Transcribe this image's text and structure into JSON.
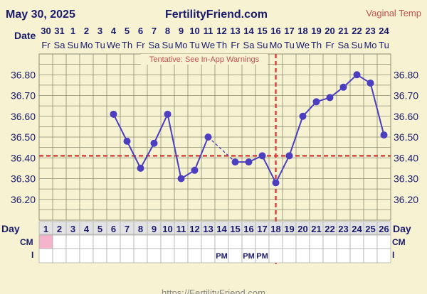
{
  "header": {
    "date": "May 30, 2025",
    "site": "FertilityFriend.com",
    "chart_label": "Vaginal Temp",
    "footer_url": "https://FertilityFriend.com"
  },
  "labels": {
    "date_row": "Date",
    "day_row": "Day",
    "cm_row": "CM",
    "i_row": "I",
    "warning": "Tentative: See In-App Warnings"
  },
  "colors": {
    "background": "#f7f3d2",
    "line": "#4b3fbf",
    "coverline": "#d9463f",
    "grid": "#8c8c72",
    "text": "#1a1a6e",
    "warning_text": "#c0504d",
    "cm_pink": "#f6b3cc"
  },
  "chart_data": {
    "type": "line",
    "title": "",
    "xlabel": "Day",
    "ylabel": "",
    "ylim": [
      36.1,
      36.9
    ],
    "yticks": [
      36.2,
      36.3,
      36.4,
      36.5,
      36.6,
      36.7,
      36.8
    ],
    "grid": true,
    "dates": [
      "30",
      "31",
      "1",
      "2",
      "3",
      "4",
      "5",
      "6",
      "7",
      "8",
      "9",
      "10",
      "11",
      "12",
      "13",
      "14",
      "15",
      "16",
      "17",
      "18",
      "19",
      "20",
      "21",
      "22",
      "23",
      "24"
    ],
    "weekdays": [
      "Fr",
      "Sa",
      "Su",
      "Mo",
      "Tu",
      "We",
      "Th",
      "Fr",
      "Sa",
      "Su",
      "Mo",
      "Tu",
      "We",
      "Th",
      "Fr",
      "Sa",
      "Su",
      "Mo",
      "Tu",
      "We",
      "Th",
      "Fr",
      "Sa",
      "Su",
      "Mo",
      "Tu"
    ],
    "cycle_days": [
      1,
      2,
      3,
      4,
      5,
      6,
      7,
      8,
      9,
      10,
      11,
      12,
      13,
      14,
      15,
      16,
      17,
      18,
      19,
      20,
      21,
      22,
      23,
      24,
      25,
      26
    ],
    "series": [
      {
        "values": [
          null,
          null,
          null,
          null,
          null,
          36.61,
          36.48,
          36.35,
          36.47,
          36.61,
          36.3,
          36.34,
          36.5,
          null,
          36.38,
          36.38,
          36.41,
          36.28,
          36.41,
          36.6,
          36.67,
          36.69,
          36.74,
          36.8,
          36.76,
          36.51
        ]
      }
    ],
    "coverline": 36.41,
    "ovulation_day": 18,
    "cm": {
      "1": "pink"
    },
    "intercourse": {
      "14": "PM",
      "16": "PM",
      "17": "PM"
    }
  }
}
